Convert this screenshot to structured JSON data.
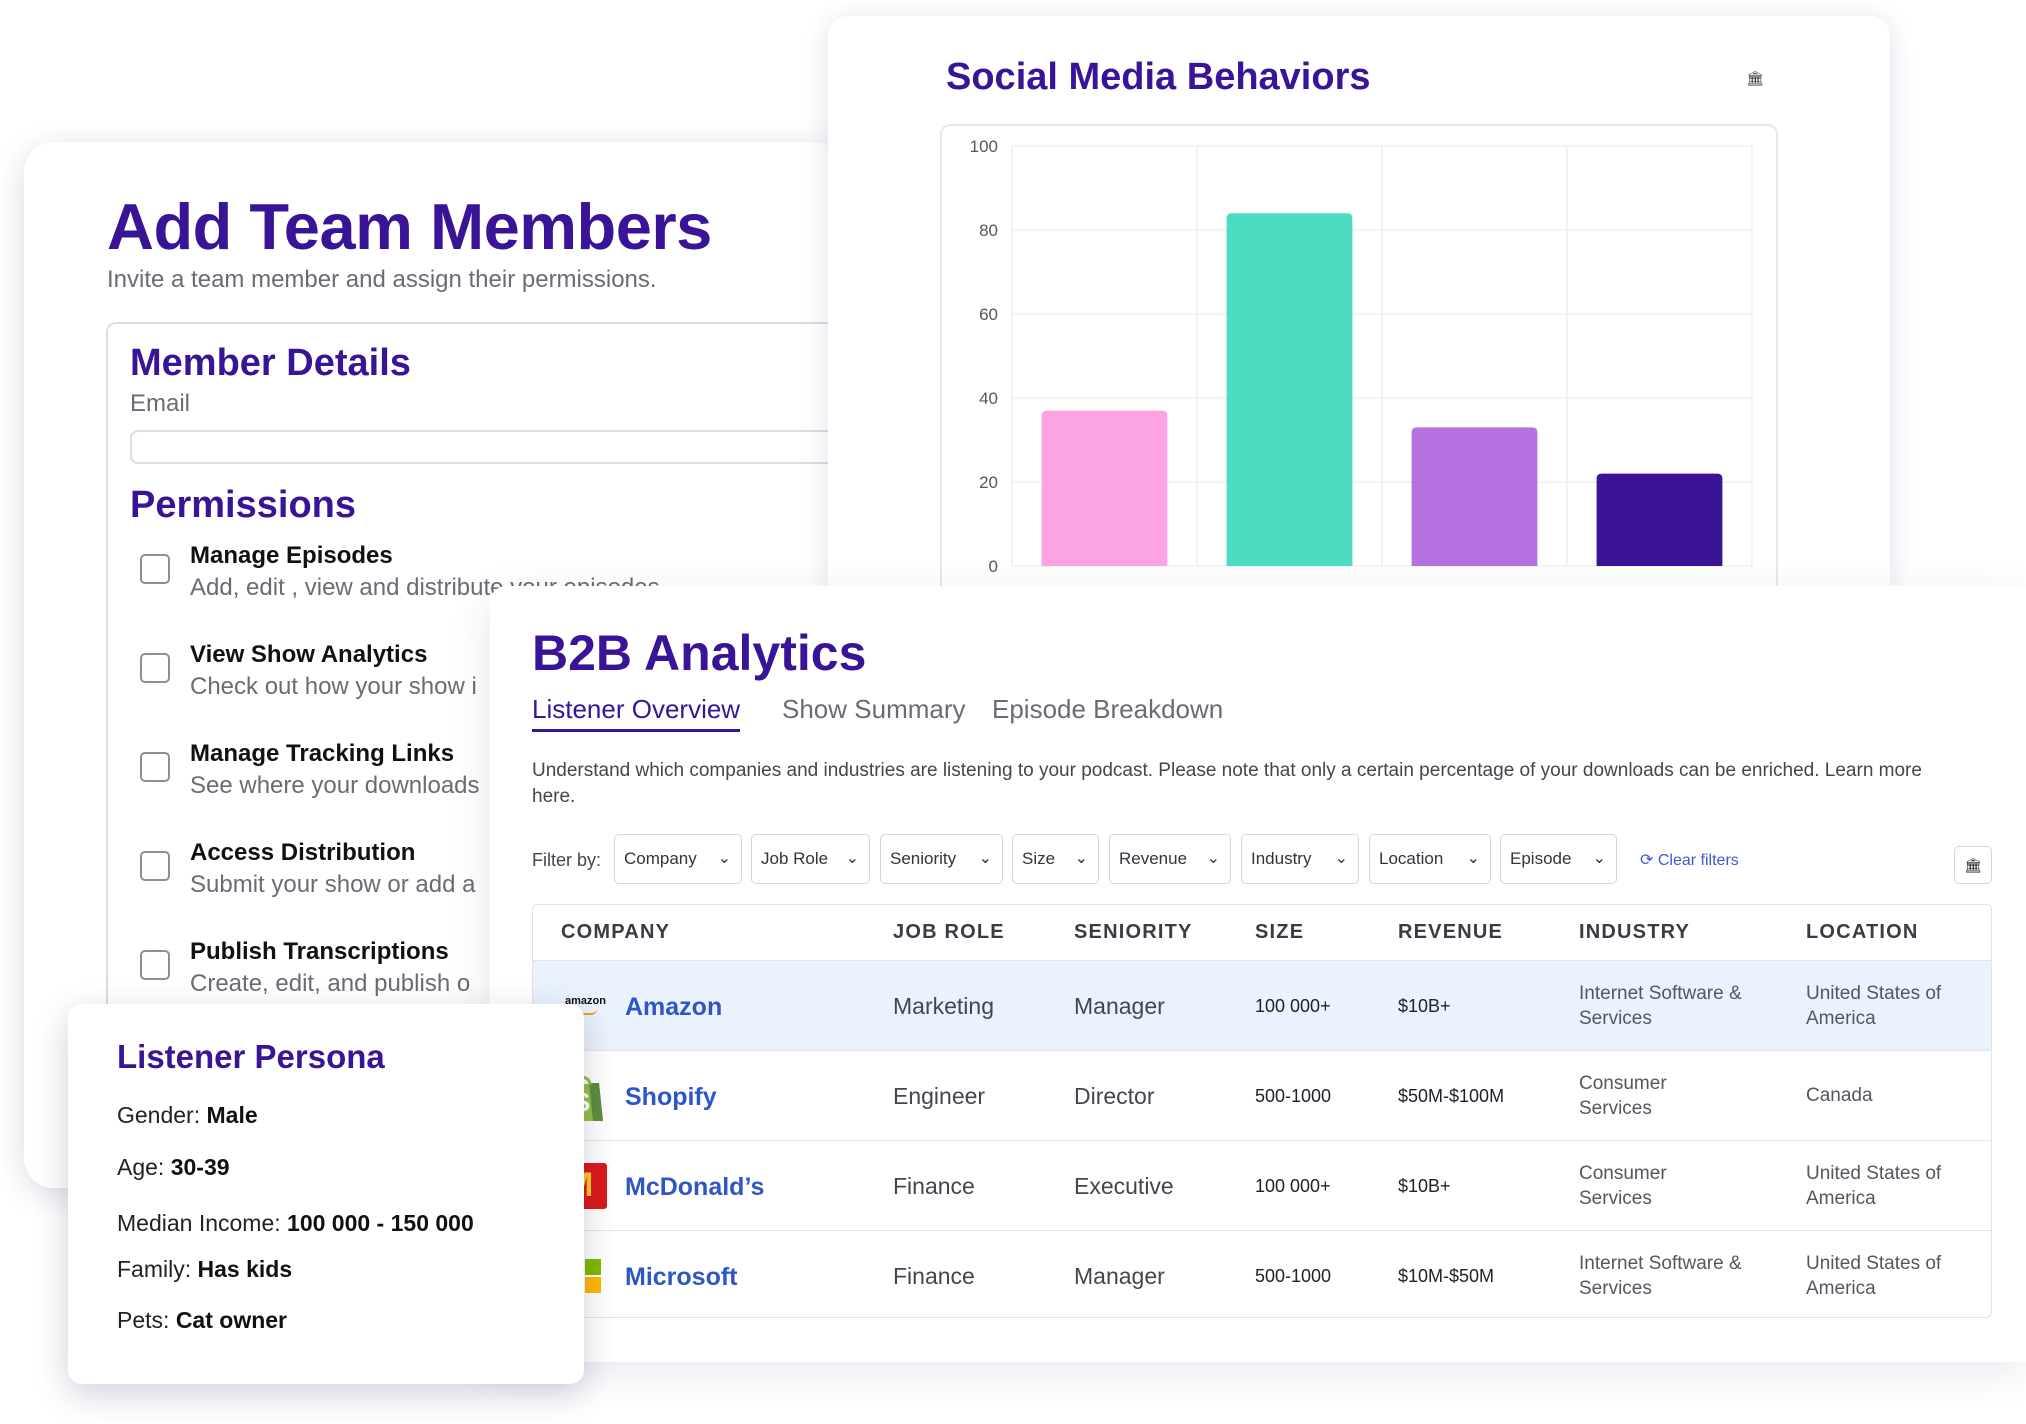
{
  "team": {
    "title": "Add Team Members",
    "subtitle": "Invite a team member and assign their permissions.",
    "member_details_title": "Member Details",
    "email_label": "Email",
    "email_value": "",
    "permissions_title": "Permissions",
    "permissions": [
      {
        "name": "Manage Episodes",
        "desc": "Add, edit , view and distribute your episodes"
      },
      {
        "name": "View Show Analytics",
        "desc": "Check out how your show i"
      },
      {
        "name": "Manage Tracking Links",
        "desc": "See where your downloads"
      },
      {
        "name": "Access Distribution",
        "desc": "Submit your show or add a"
      },
      {
        "name": "Publish Transcriptions",
        "desc": "Create, edit, and publish o"
      }
    ]
  },
  "social": {
    "title": "Social Media Behaviors",
    "icon": "bank-icon"
  },
  "chart_data": {
    "type": "bar",
    "title": "Social Media Behaviors",
    "categories": [
      "",
      "",
      "",
      ""
    ],
    "values": [
      37,
      84,
      33,
      22
    ],
    "colors": [
      "#fca3e3",
      "#4ddcbf",
      "#b672e0",
      "#3a1396"
    ],
    "ylim": [
      0,
      100
    ],
    "yticks": [
      0,
      20,
      40,
      60,
      80,
      100
    ],
    "grid": true
  },
  "b2b": {
    "title": "B2B Analytics",
    "tabs": [
      "Listener Overview",
      "Show Summary",
      "Episode Breakdown"
    ],
    "description": "Understand which companies and industries are listening to your podcast. Please note that only a certain percentage of your downloads can be enriched. Learn more here.",
    "filter_label": "Filter by:",
    "filters": [
      "Company",
      "Job Role",
      "Seniority",
      "Size",
      "Revenue",
      "Industry",
      "Location",
      "Episode"
    ],
    "clear_filters": "Clear filters",
    "headers": [
      "COMPANY",
      "JOB ROLE",
      "SENIORITY",
      "SIZE",
      "REVENUE",
      "INDUSTRY",
      "LOCATION"
    ],
    "rows": [
      {
        "company": "Amazon",
        "logo_text": "amazon",
        "job_role": "Marketing",
        "seniority": "Manager",
        "size": "100 000+",
        "revenue": "$10B+",
        "industry": "Internet Software & Services",
        "location": "United States of America"
      },
      {
        "company": "Shopify",
        "logo_text": "S",
        "job_role": "Engineer",
        "seniority": "Director",
        "size": "500-1000",
        "revenue": "$50M-$100M",
        "industry": "Consumer Services",
        "location": "Canada"
      },
      {
        "company": "McDonald’s",
        "logo_text": "M",
        "job_role": "Finance",
        "seniority": "Executive",
        "size": "100 000+",
        "revenue": "$10B+",
        "industry": "Consumer Services",
        "location": "United States of America"
      },
      {
        "company": "Microsoft",
        "logo_text": "",
        "job_role": "Finance",
        "seniority": "Manager",
        "size": "500-1000",
        "revenue": "$10M-$50M",
        "industry": "Internet Software & Services",
        "location": "United States of America"
      }
    ]
  },
  "persona": {
    "title": "Listener Persona",
    "fields": [
      {
        "label": "Gender: ",
        "value": "Male"
      },
      {
        "label": "Age: ",
        "value": "30-39"
      },
      {
        "label": "Median Income: ",
        "value": "100 000 - 150 000"
      },
      {
        "label": "Family: ",
        "value": "Has kids"
      },
      {
        "label": "Pets:  ",
        "value": "Cat owner"
      }
    ]
  }
}
